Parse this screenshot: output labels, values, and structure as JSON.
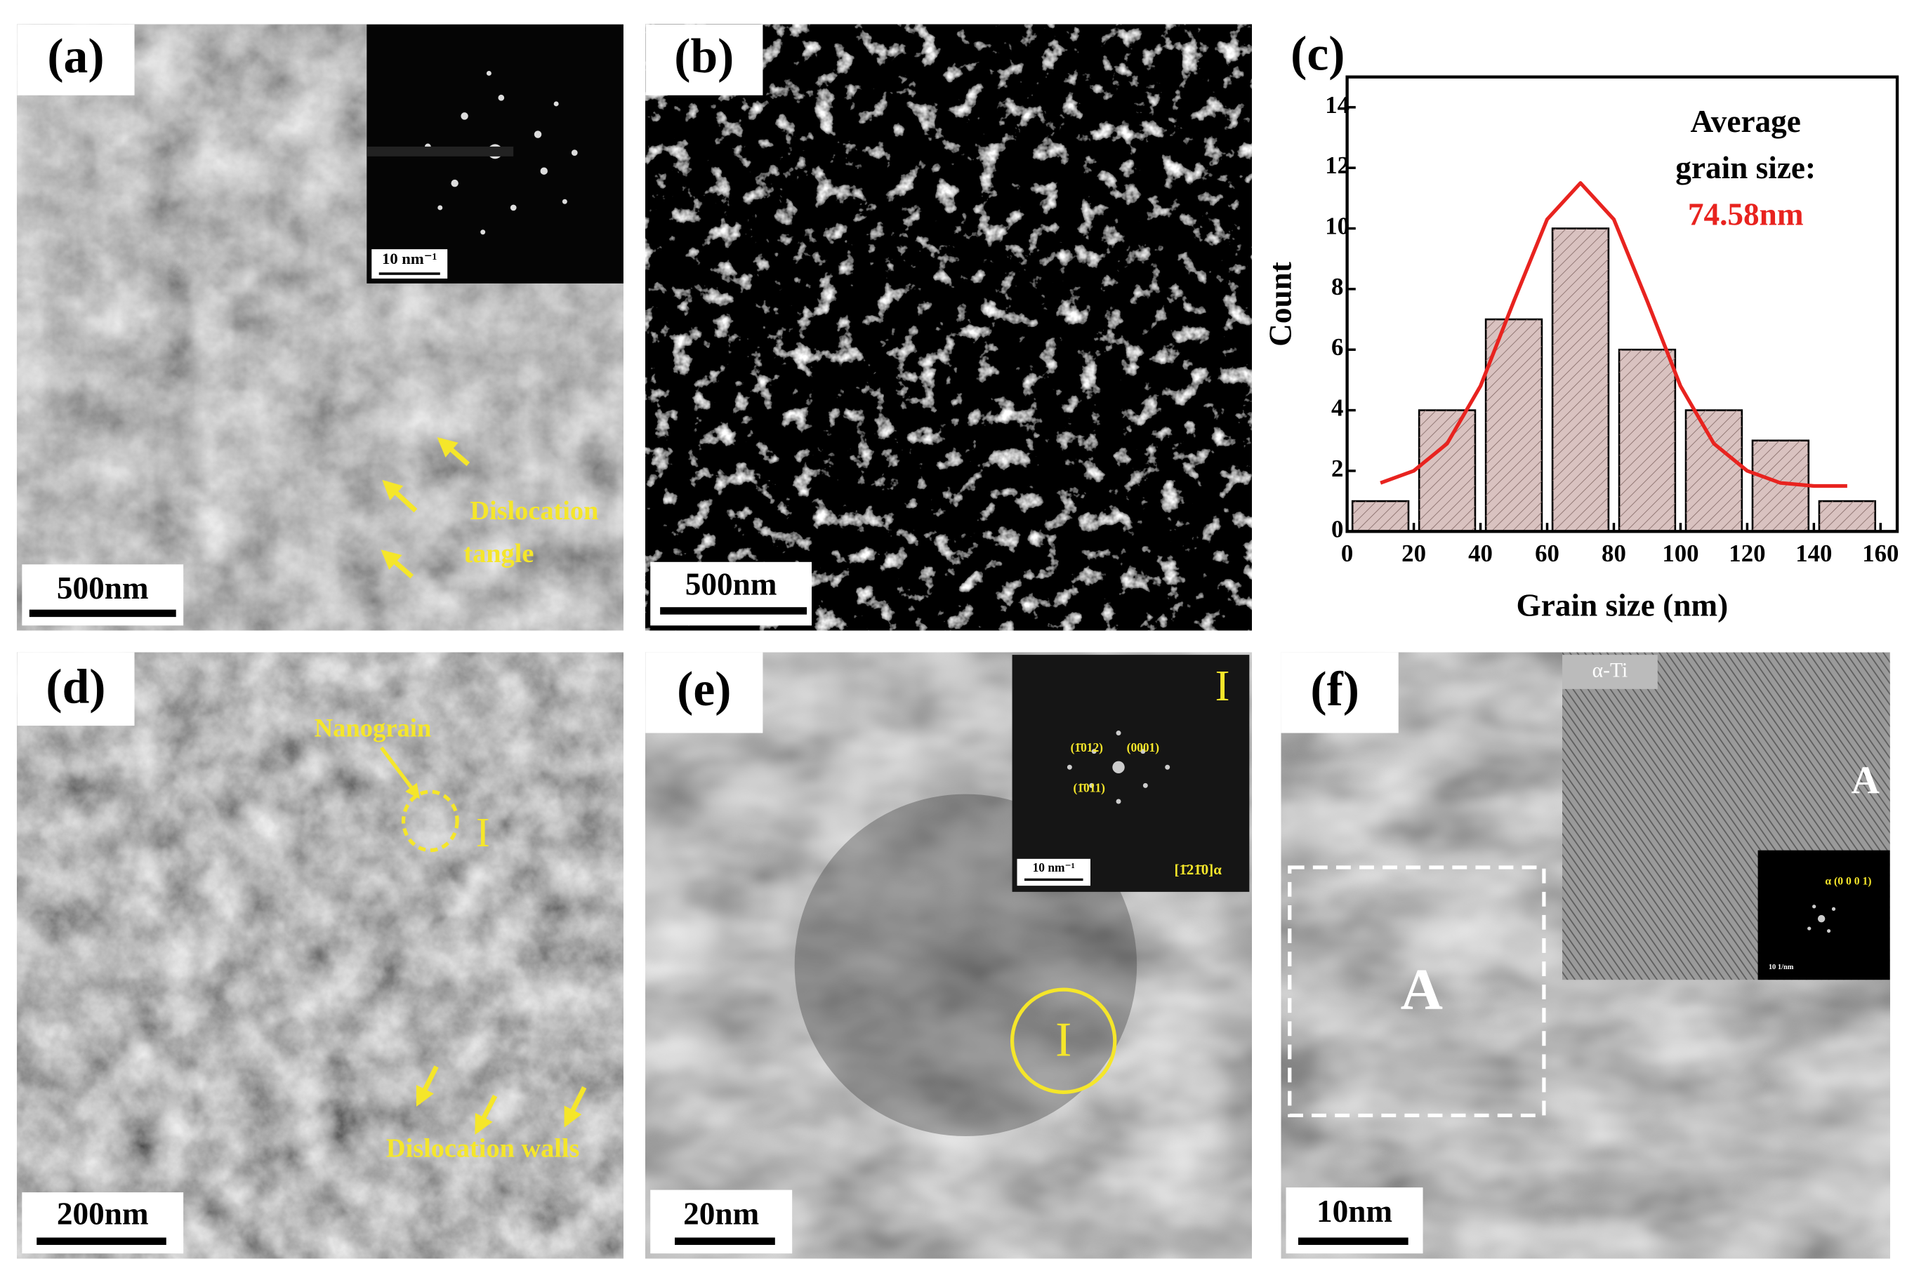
{
  "panels": {
    "a": {
      "label": "(a)",
      "scale_bar": "500nm",
      "inset_scale_bar": "10 nm⁻¹",
      "annotation": [
        "Dislocation",
        "tangle"
      ]
    },
    "b": {
      "label": "(b)",
      "scale_bar": "500nm"
    },
    "c": {
      "label": "(c)"
    },
    "d": {
      "label": "(d)",
      "scale_bar": "200nm",
      "nanograin": "Nanograin",
      "region": "I",
      "annotation": "Dislocation walls"
    },
    "e": {
      "label": "(e)",
      "scale_bar": "20nm",
      "region": "I",
      "inset_region": "I",
      "inset_scale_bar": "10 nm⁻¹",
      "zone_axis": "[1̄21̄0]α",
      "planes": [
        "(1̄012)",
        "(0001)",
        "(1̄011)"
      ]
    },
    "f": {
      "label": "(f)",
      "scale_bar": "10nm",
      "region": "A",
      "inset_title": "α-Ti",
      "inset_region": "A",
      "fft_label": "α (0 0 0 1)",
      "fft_scale_bar": "10 1/nm"
    }
  },
  "chart_data": {
    "type": "histogram",
    "bins": [
      0,
      20,
      40,
      60,
      80,
      100,
      120,
      140,
      160
    ],
    "values": [
      1,
      4,
      7,
      10,
      6,
      4,
      3,
      1
    ],
    "color": "#d9c2c0",
    "xlabel": "Grain size (nm)",
    "ylabel": "Count",
    "annotation": [
      "Average",
      "grain size:"
    ],
    "annotation_value": "74.58nm",
    "annotation_value_color": "#e8231f",
    "xlim": [
      0,
      165
    ],
    "ylim": [
      0,
      15
    ],
    "xticks": [
      0,
      20,
      40,
      60,
      80,
      100,
      120,
      140,
      160
    ],
    "yticks": [
      0,
      2,
      4,
      6,
      8,
      10,
      12,
      14
    ],
    "fit": {
      "color": "#e8231f",
      "x": [
        10,
        20,
        30,
        40,
        50,
        60,
        70,
        80,
        90,
        100,
        110,
        120,
        130,
        140,
        150
      ],
      "values": [
        1.6,
        2.0,
        2.9,
        4.8,
        7.6,
        10.3,
        11.5,
        10.3,
        7.6,
        4.8,
        2.9,
        2.0,
        1.6,
        1.5,
        1.5
      ]
    }
  }
}
